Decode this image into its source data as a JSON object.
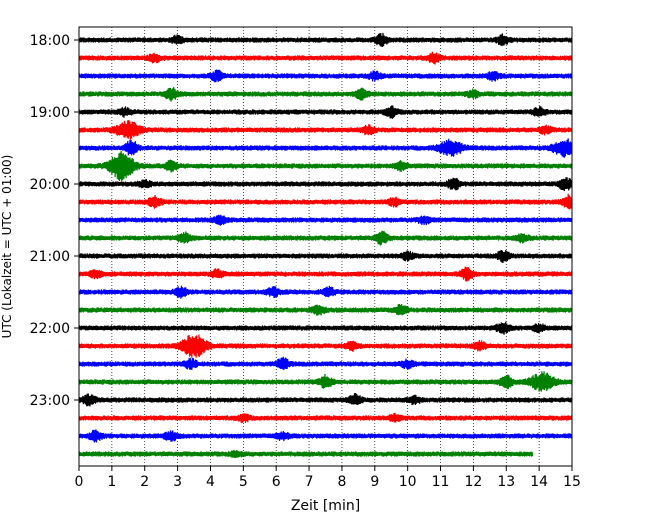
{
  "chart_data": {
    "type": "line",
    "title": "",
    "xlabel": "Zeit  [min]",
    "ylabel": "UTC (Lokalzeit = UTC + 01:00)",
    "xlim": [
      0,
      15
    ],
    "x_ticks": [
      "0",
      "1",
      "2",
      "3",
      "4",
      "5",
      "6",
      "7",
      "8",
      "9",
      "10",
      "11",
      "12",
      "13",
      "14",
      "15"
    ],
    "y_ticks": [
      "18:00",
      "19:00",
      "20:00",
      "21:00",
      "22:00",
      "23:00"
    ],
    "grid": "vertical dotted",
    "colors": [
      "#000000",
      "#ff0000",
      "#0000ff",
      "#008000"
    ],
    "traces": [
      {
        "start": "18:00",
        "color": "#000000",
        "end_min": 15,
        "events": [
          {
            "t": 3.0,
            "amp": 1.4
          },
          {
            "t": 9.2,
            "amp": 2.2
          },
          {
            "t": 12.9,
            "amp": 2.0
          }
        ]
      },
      {
        "start": "18:15",
        "color": "#ff0000",
        "end_min": 15,
        "events": [
          {
            "t": 2.3,
            "amp": 1.6
          },
          {
            "t": 10.8,
            "amp": 2.0
          }
        ]
      },
      {
        "start": "18:30",
        "color": "#0000ff",
        "end_min": 15,
        "events": [
          {
            "t": 4.2,
            "amp": 2.0
          },
          {
            "t": 9.0,
            "amp": 1.5
          },
          {
            "t": 12.6,
            "amp": 1.5
          }
        ]
      },
      {
        "start": "18:45",
        "color": "#008000",
        "end_min": 15,
        "events": [
          {
            "t": 2.8,
            "amp": 2.5
          },
          {
            "t": 8.6,
            "amp": 2.0
          },
          {
            "t": 12.0,
            "amp": 1.4
          }
        ]
      },
      {
        "start": "19:00",
        "color": "#000000",
        "end_min": 15,
        "events": [
          {
            "t": 1.4,
            "amp": 1.5
          },
          {
            "t": 9.5,
            "amp": 2.0
          },
          {
            "t": 14.0,
            "amp": 1.6
          }
        ]
      },
      {
        "start": "19:15",
        "color": "#ff0000",
        "end_min": 15,
        "events": [
          {
            "t": 1.5,
            "amp": 3.5
          },
          {
            "t": 8.8,
            "amp": 1.6
          },
          {
            "t": 14.2,
            "amp": 1.4
          }
        ]
      },
      {
        "start": "19:30",
        "color": "#0000ff",
        "end_min": 15,
        "events": [
          {
            "t": 1.6,
            "amp": 3.0
          },
          {
            "t": 11.3,
            "amp": 3.2
          },
          {
            "t": 14.8,
            "amp": 3.5
          }
        ]
      },
      {
        "start": "19:45",
        "color": "#008000",
        "end_min": 15,
        "events": [
          {
            "t": 1.3,
            "amp": 6.0
          },
          {
            "t": 2.8,
            "amp": 2.0
          },
          {
            "t": 9.8,
            "amp": 1.8
          }
        ]
      },
      {
        "start": "20:00",
        "color": "#000000",
        "end_min": 15,
        "events": [
          {
            "t": 2.0,
            "amp": 1.3
          },
          {
            "t": 11.4,
            "amp": 2.2
          },
          {
            "t": 14.8,
            "amp": 2.6
          }
        ]
      },
      {
        "start": "20:15",
        "color": "#ff0000",
        "end_min": 15,
        "events": [
          {
            "t": 2.3,
            "amp": 2.0
          },
          {
            "t": 9.6,
            "amp": 1.6
          },
          {
            "t": 14.9,
            "amp": 2.6
          }
        ]
      },
      {
        "start": "20:30",
        "color": "#0000ff",
        "end_min": 15,
        "events": [
          {
            "t": 4.3,
            "amp": 1.6
          },
          {
            "t": 10.5,
            "amp": 1.4
          }
        ]
      },
      {
        "start": "20:45",
        "color": "#008000",
        "end_min": 15,
        "events": [
          {
            "t": 3.2,
            "amp": 2.0
          },
          {
            "t": 9.2,
            "amp": 2.4
          },
          {
            "t": 13.5,
            "amp": 1.4
          }
        ]
      },
      {
        "start": "21:00",
        "color": "#000000",
        "end_min": 15,
        "events": [
          {
            "t": 10.0,
            "amp": 1.6
          },
          {
            "t": 12.9,
            "amp": 2.0
          }
        ]
      },
      {
        "start": "21:15",
        "color": "#ff0000",
        "end_min": 15,
        "events": [
          {
            "t": 0.5,
            "amp": 1.4
          },
          {
            "t": 4.2,
            "amp": 1.5
          },
          {
            "t": 11.8,
            "amp": 2.4
          }
        ]
      },
      {
        "start": "21:30",
        "color": "#0000ff",
        "end_min": 15,
        "events": [
          {
            "t": 3.1,
            "amp": 2.0
          },
          {
            "t": 5.9,
            "amp": 1.8
          },
          {
            "t": 7.6,
            "amp": 1.6
          }
        ]
      },
      {
        "start": "21:45",
        "color": "#008000",
        "end_min": 15,
        "events": [
          {
            "t": 7.3,
            "amp": 1.6
          },
          {
            "t": 9.8,
            "amp": 2.0
          }
        ]
      },
      {
        "start": "22:00",
        "color": "#000000",
        "end_min": 15,
        "events": [
          {
            "t": 12.9,
            "amp": 2.2
          },
          {
            "t": 14.0,
            "amp": 1.4
          }
        ]
      },
      {
        "start": "22:15",
        "color": "#ff0000",
        "end_min": 15,
        "events": [
          {
            "t": 3.5,
            "amp": 5.0
          },
          {
            "t": 8.3,
            "amp": 1.6
          },
          {
            "t": 12.2,
            "amp": 1.6
          }
        ]
      },
      {
        "start": "22:30",
        "color": "#0000ff",
        "end_min": 15,
        "events": [
          {
            "t": 3.4,
            "amp": 1.8
          },
          {
            "t": 6.2,
            "amp": 2.2
          },
          {
            "t": 10.0,
            "amp": 1.5
          }
        ]
      },
      {
        "start": "22:45",
        "color": "#008000",
        "end_min": 15,
        "events": [
          {
            "t": 7.5,
            "amp": 2.5
          },
          {
            "t": 13.0,
            "amp": 2.4
          },
          {
            "t": 14.1,
            "amp": 3.8
          }
        ]
      },
      {
        "start": "23:00",
        "color": "#000000",
        "end_min": 15,
        "events": [
          {
            "t": 0.3,
            "amp": 2.2
          },
          {
            "t": 8.4,
            "amp": 2.0
          },
          {
            "t": 10.2,
            "amp": 1.3
          }
        ]
      },
      {
        "start": "23:15",
        "color": "#ff0000",
        "end_min": 15,
        "events": [
          {
            "t": 5.0,
            "amp": 1.3
          },
          {
            "t": 9.6,
            "amp": 1.2
          }
        ]
      },
      {
        "start": "23:30",
        "color": "#0000ff",
        "end_min": 15,
        "events": [
          {
            "t": 0.5,
            "amp": 2.0
          },
          {
            "t": 2.8,
            "amp": 1.8
          },
          {
            "t": 6.2,
            "amp": 1.4
          }
        ]
      },
      {
        "start": "23:45",
        "color": "#008000",
        "end_min": 13.8,
        "events": [
          {
            "t": 4.8,
            "amp": 1.0
          }
        ]
      }
    ]
  }
}
